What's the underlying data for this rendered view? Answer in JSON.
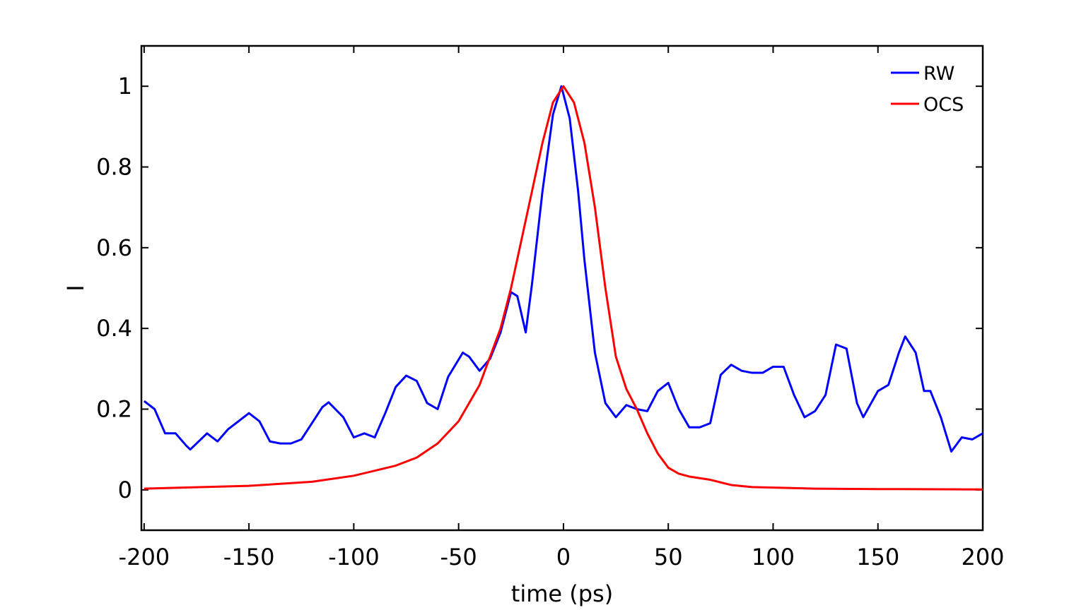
{
  "chart_data": {
    "type": "line",
    "xlabel": "time (ps)",
    "ylabel": "I",
    "xlim": [
      -201.3,
      200
    ],
    "ylim": [
      -0.1,
      1.1
    ],
    "xticks": [
      -200,
      -150,
      -100,
      -50,
      0,
      50,
      100,
      150,
      200
    ],
    "yticks": [
      0,
      0.2,
      0.4,
      0.6,
      0.8,
      1
    ],
    "grid": false,
    "legend": "upper right",
    "series": [
      {
        "name": "RW",
        "color": "#0000ff",
        "x": [
          -200,
          -195,
          -190,
          -185,
          -180,
          -178,
          -170,
          -165,
          -160,
          -155,
          -150,
          -145,
          -140,
          -135,
          -130,
          -125,
          -120,
          -115,
          -112,
          -105,
          -100,
          -95,
          -90,
          -85,
          -80,
          -75,
          -70,
          -65,
          -60,
          -55,
          -48,
          -45,
          -40,
          -35,
          -30,
          -25,
          -22,
          -18,
          -15,
          -10,
          -5,
          -1,
          3,
          7,
          10,
          15,
          20,
          25,
          30,
          35,
          40,
          45,
          50,
          55,
          60,
          65,
          70,
          75,
          80,
          85,
          90,
          95,
          100,
          105,
          110,
          115,
          120,
          125,
          130,
          135,
          140,
          143,
          150,
          155,
          160,
          163,
          168,
          172,
          175,
          180,
          185,
          190,
          195,
          200
        ],
        "values": [
          0.22,
          0.2,
          0.14,
          0.14,
          0.11,
          0.1,
          0.14,
          0.12,
          0.15,
          0.17,
          0.19,
          0.17,
          0.12,
          0.115,
          0.115,
          0.125,
          0.165,
          0.205,
          0.217,
          0.18,
          0.13,
          0.14,
          0.13,
          0.19,
          0.255,
          0.283,
          0.27,
          0.215,
          0.2,
          0.28,
          0.34,
          0.33,
          0.295,
          0.325,
          0.39,
          0.49,
          0.48,
          0.39,
          0.51,
          0.74,
          0.93,
          1.0,
          0.92,
          0.74,
          0.57,
          0.34,
          0.215,
          0.18,
          0.21,
          0.2,
          0.195,
          0.245,
          0.265,
          0.2,
          0.155,
          0.155,
          0.165,
          0.285,
          0.31,
          0.295,
          0.29,
          0.29,
          0.305,
          0.305,
          0.235,
          0.18,
          0.195,
          0.235,
          0.36,
          0.35,
          0.215,
          0.18,
          0.245,
          0.26,
          0.34,
          0.38,
          0.34,
          0.245,
          0.245,
          0.18,
          0.095,
          0.13,
          0.125,
          0.14
        ]
      },
      {
        "name": "OCS",
        "color": "#ff0000",
        "x": [
          -200,
          -150,
          -120,
          -100,
          -80,
          -70,
          -60,
          -50,
          -40,
          -30,
          -25,
          -20,
          -15,
          -10,
          -5,
          0,
          5,
          10,
          15,
          20,
          25,
          30,
          35,
          40,
          45,
          50,
          55,
          60,
          70,
          80,
          90,
          120,
          150,
          200
        ],
        "values": [
          0.003,
          0.01,
          0.02,
          0.035,
          0.06,
          0.08,
          0.115,
          0.17,
          0.26,
          0.4,
          0.5,
          0.62,
          0.74,
          0.86,
          0.96,
          1.0,
          0.96,
          0.86,
          0.7,
          0.5,
          0.33,
          0.25,
          0.2,
          0.14,
          0.09,
          0.055,
          0.04,
          0.033,
          0.025,
          0.012,
          0.007,
          0.003,
          0.002,
          0.001
        ]
      }
    ]
  }
}
